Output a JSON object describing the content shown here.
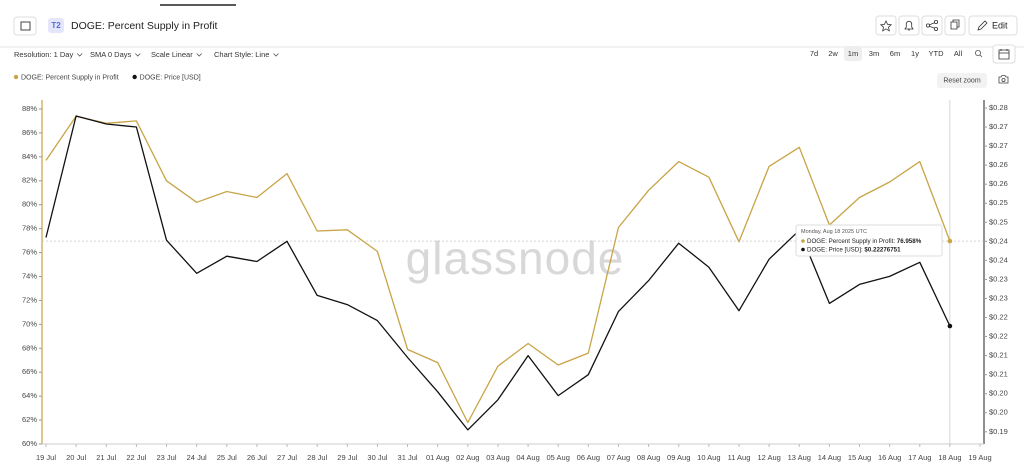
{
  "header": {
    "badge": "T2",
    "title": "DOGE: Percent Supply in Profit",
    "edit": "Edit"
  },
  "toolbar": {
    "controls": [
      "Resolution: 1 Day",
      "SMA 0 Days",
      "Scale Linear",
      "Chart Style: Line"
    ],
    "ranges": [
      "7d",
      "2w",
      "1m",
      "3m",
      "6m",
      "1y",
      "YTD",
      "All"
    ],
    "active_range": "1m",
    "reset_zoom": "Reset zoom"
  },
  "chart_data": {
    "type": "line",
    "watermark": "glassnode",
    "categories": [
      "19 Jul",
      "20 Jul",
      "21 Jul",
      "22 Jul",
      "23 Jul",
      "24 Jul",
      "25 Jul",
      "26 Jul",
      "27 Jul",
      "28 Jul",
      "29 Jul",
      "30 Jul",
      "31 Jul",
      "01 Aug",
      "02 Aug",
      "03 Aug",
      "04 Aug",
      "05 Aug",
      "06 Aug",
      "07 Aug",
      "08 Aug",
      "09 Aug",
      "10 Aug",
      "11 Aug",
      "12 Aug",
      "13 Aug",
      "14 Aug",
      "15 Aug",
      "16 Aug",
      "17 Aug",
      "18 Aug",
      "19 Aug"
    ],
    "series": [
      {
        "name": "DOGE: Percent Supply in Profit",
        "color": "#c8a446",
        "values": [
          83.7,
          87.4,
          86.8,
          87.0,
          82.0,
          80.2,
          81.1,
          80.6,
          82.6,
          77.8,
          77.9,
          76.1,
          67.9,
          66.8,
          61.8,
          66.5,
          68.4,
          66.6,
          67.6,
          78.1,
          81.2,
          83.6,
          82.3,
          76.9,
          83.2,
          84.8,
          78.3,
          80.6,
          81.9,
          83.6,
          76.958,
          null
        ]
      },
      {
        "name": "DOGE: Price [USD]",
        "color": "#111111",
        "axis": "y2",
        "values": [
          0.246,
          0.2779,
          0.2758,
          0.275,
          0.2453,
          0.2366,
          0.2411,
          0.2397,
          0.245,
          0.2308,
          0.2284,
          0.2242,
          0.2145,
          0.2055,
          0.1955,
          0.2034,
          0.215,
          0.2045,
          0.21,
          0.2266,
          0.2347,
          0.2445,
          0.2382,
          0.2268,
          0.2403,
          0.2479,
          0.2287,
          0.2337,
          0.2358,
          0.2395,
          0.22276751,
          null
        ]
      }
    ],
    "ylim": [
      60,
      88.75
    ],
    "yticks": [
      {
        "value": 60,
        "label": "60%"
      },
      {
        "value": 62,
        "label": "62%"
      },
      {
        "value": 64,
        "label": "64%"
      },
      {
        "value": 66,
        "label": "66%"
      },
      {
        "value": 68,
        "label": "68%"
      },
      {
        "value": 70,
        "label": "70%"
      },
      {
        "value": 72,
        "label": "72%"
      },
      {
        "value": 74,
        "label": "74%"
      },
      {
        "value": 76,
        "label": "76%"
      },
      {
        "value": 78,
        "label": "78%"
      },
      {
        "value": 80,
        "label": "80%"
      },
      {
        "value": 82,
        "label": "82%"
      },
      {
        "value": 84,
        "label": "84%"
      },
      {
        "value": 86,
        "label": "86%"
      },
      {
        "value": 88,
        "label": "88%"
      }
    ],
    "y2lim": [
      0.1918,
      0.2821
    ],
    "y2ticks": [
      {
        "value": 0.195,
        "label": "$0.19"
      },
      {
        "value": 0.2,
        "label": "$0.20"
      },
      {
        "value": 0.205,
        "label": "$0.20"
      },
      {
        "value": 0.21,
        "label": "$0.21"
      },
      {
        "value": 0.215,
        "label": "$0.21"
      },
      {
        "value": 0.22,
        "label": "$0.22"
      },
      {
        "value": 0.225,
        "label": "$0.22"
      },
      {
        "value": 0.23,
        "label": "$0.23"
      },
      {
        "value": 0.235,
        "label": "$0.23"
      },
      {
        "value": 0.24,
        "label": "$0.24"
      },
      {
        "value": 0.245,
        "label": "$0.24"
      },
      {
        "value": 0.25,
        "label": "$0.25"
      },
      {
        "value": 0.255,
        "label": "$0.25"
      },
      {
        "value": 0.26,
        "label": "$0.26"
      },
      {
        "value": 0.265,
        "label": "$0.26"
      },
      {
        "value": 0.27,
        "label": "$0.27"
      },
      {
        "value": 0.275,
        "label": "$0.27"
      },
      {
        "value": 0.28,
        "label": "$0.28"
      }
    ],
    "grid": false,
    "tooltip": {
      "date": "Monday, Aug 18 2025 UTC",
      "rows": [
        {
          "label": "DOGE: Percent Supply in Profit: ",
          "value": "76.958%"
        },
        {
          "label": "DOGE: Price [USD]: ",
          "value": "$0.22276751"
        }
      ]
    }
  }
}
